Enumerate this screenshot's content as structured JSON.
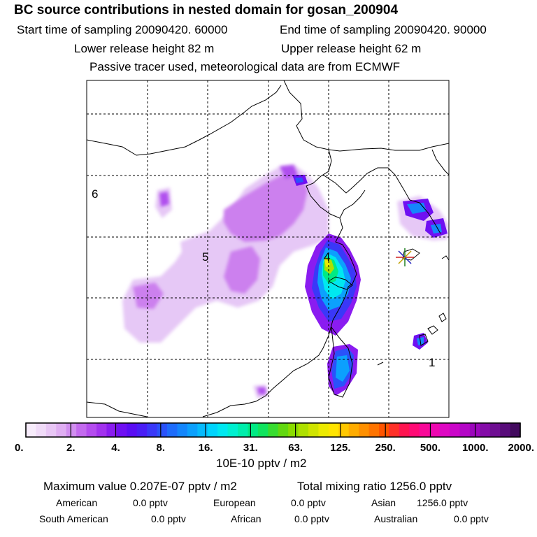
{
  "title": "BC  source contributions in nested domain for gosan_200904",
  "sampling": {
    "start": "Start time of sampling 20090420. 60000",
    "end": "End time of sampling 20090420. 90000"
  },
  "release": {
    "lower": "Lower release height   82 m",
    "upper": "Upper release height   62 m"
  },
  "note": "Passive tracer used, meteorological data are from ECMWF",
  "map": {
    "region_labels": [
      "6",
      "5",
      "4",
      "1"
    ],
    "receptor_marker": "star-receptor"
  },
  "colorbar": {
    "ticks": [
      "0.",
      "2.",
      "4.",
      "8.",
      "16.",
      "31.",
      "63.",
      "125.",
      "250.",
      "500.",
      "1000.",
      "2000."
    ],
    "unit": "10E-10 pptv / m2",
    "colors": [
      "#f7ecfb",
      "#f0dbf8",
      "#e8c6f5",
      "#dfaef2",
      "#d18ef0",
      "#c36aee",
      "#b44cee",
      "#a232ee",
      "#8a1cf0",
      "#6f10f2",
      "#5a0ef4",
      "#4a1ef6",
      "#3a38f8",
      "#2a52fa",
      "#1e6cfb",
      "#1486fc",
      "#0ca0fd",
      "#06bafd",
      "#00d4fd",
      "#00e8f0",
      "#00f0d0",
      "#00eeac",
      "#00ea84",
      "#10e45e",
      "#38dc30",
      "#62d810",
      "#8adc00",
      "#aee000",
      "#d0e400",
      "#ecea00",
      "#ffe400",
      "#ffc800",
      "#ffac00",
      "#ff9000",
      "#ff7400",
      "#ff5400",
      "#ff3028",
      "#ff1450",
      "#ff0a74",
      "#f80898",
      "#ee08b0",
      "#de08c2",
      "#ca06c8",
      "#b406c6",
      "#9c06bc",
      "#840ca8",
      "#6e0e92",
      "#580c7a",
      "#420a5e"
    ]
  },
  "summary": {
    "max_value": "Maximum value  0.207E-07 pptv / m2",
    "total": "Total mixing ratio     1256.0 pptv"
  },
  "regions": [
    {
      "name": "American",
      "value": "0.0 pptv"
    },
    {
      "name": "European",
      "value": "0.0 pptv"
    },
    {
      "name": "Asian",
      "value": "1256.0 pptv"
    },
    {
      "name": "South American",
      "value": "0.0 pptv"
    },
    {
      "name": "African",
      "value": "0.0 pptv"
    },
    {
      "name": "Australian",
      "value": "0.0 pptv"
    }
  ]
}
